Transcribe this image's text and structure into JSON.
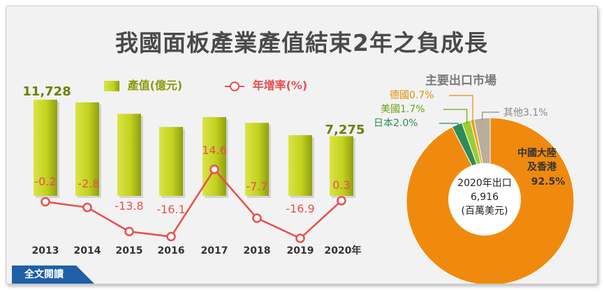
{
  "title": "我國面板產業產值結束2年之負成長",
  "legend": {
    "output_label": "產值(億元)",
    "growth_label": "年增率(%)"
  },
  "pie_title": "主要出口市場",
  "pie_center": {
    "line1": "2020年出口",
    "line2": "6,916",
    "line3": "(百萬美元)"
  },
  "full_text_button": "全文閱讀",
  "colors": {
    "bar": "#c3d220",
    "bar_dark": "#7f8f08",
    "line": "#e84e4e",
    "title": "#4a4a4a"
  },
  "chart_data": [
    {
      "type": "bar",
      "categories": [
        "2013",
        "2014",
        "2015",
        "2016",
        "2017",
        "2018",
        "2019",
        "2020年"
      ],
      "series": [
        {
          "name": "產值(億元)",
          "values": [
            11728,
            11400,
            10000,
            8400,
            9600,
            8900,
            7400,
            7275
          ]
        },
        {
          "name": "年增率(%)",
          "values": [
            -0.2,
            -2.8,
            -13.8,
            -16.1,
            14.6,
            -7.7,
            -16.9,
            0.3
          ]
        }
      ],
      "value_labels": {
        "first": "11,728",
        "last": "7,275"
      },
      "growth_labels": [
        "-0.2",
        "-2.8",
        "-13.8",
        "-16.1",
        "14.6",
        "-7.7",
        "-16.9",
        "0.3"
      ],
      "ylim": [
        0,
        11728
      ],
      "line_ylim": [
        -16.9,
        14.6
      ]
    },
    {
      "type": "pie",
      "title": "主要出口市場",
      "slices": [
        {
          "label": "中國大陸及香港",
          "line1": "中國大陸",
          "line2": "及香港",
          "value": 92.5,
          "pct": "92.5%",
          "color": "#f08a0f"
        },
        {
          "label": "日本",
          "text": "日本2.0%",
          "value": 2.0,
          "color": "#2e8b57"
        },
        {
          "label": "美國",
          "text": "美國1.7%",
          "value": 1.7,
          "color": "#9acd32"
        },
        {
          "label": "德國",
          "text": "德國0.7%",
          "value": 0.7,
          "color": "#e8a21a"
        },
        {
          "label": "其他",
          "text": "其他3.1%",
          "value": 3.1,
          "color": "#b9ae9c"
        }
      ]
    }
  ]
}
